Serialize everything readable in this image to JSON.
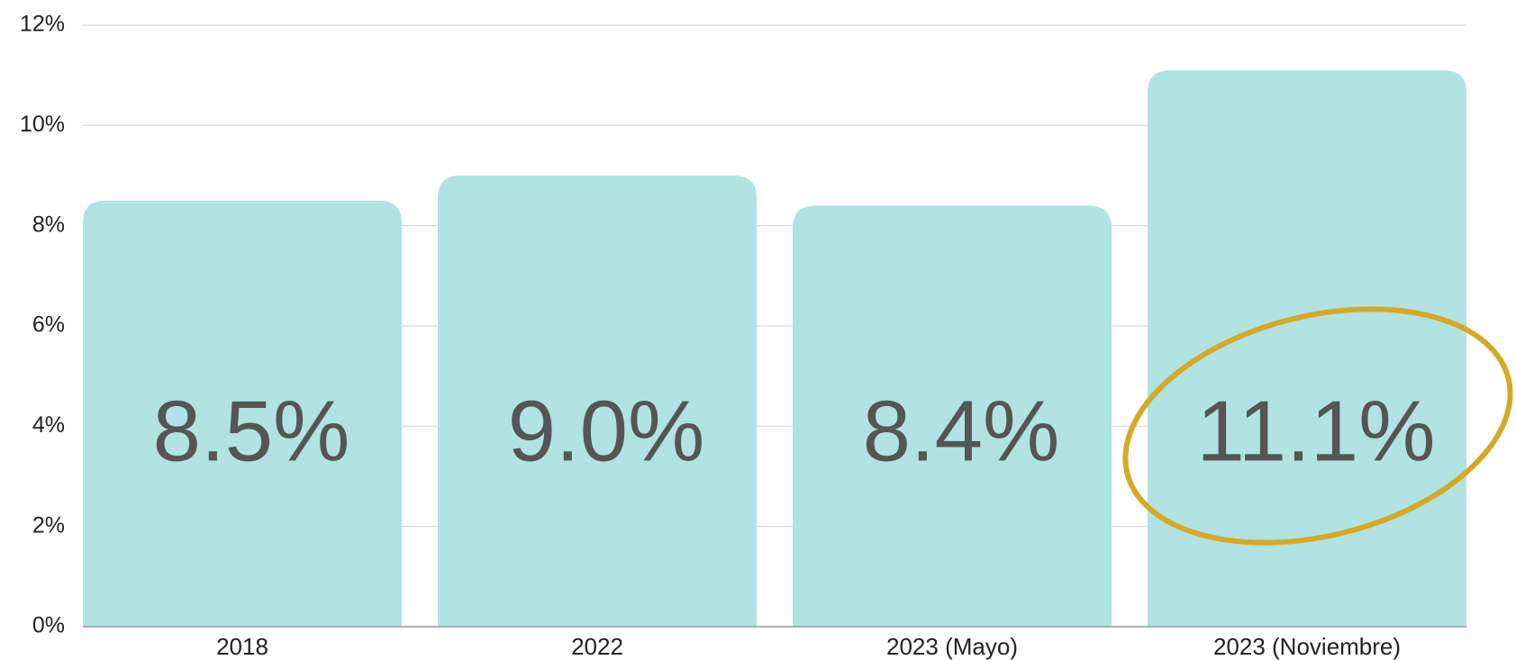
{
  "chart_data": {
    "type": "bar",
    "categories": [
      "2018",
      "2022",
      "2023 (Mayo)",
      "2023 (Noviembre)"
    ],
    "values": [
      8.5,
      9.0,
      8.4,
      11.1
    ],
    "value_labels": [
      "8.5%",
      "9.0%",
      "8.4%",
      "11.1%"
    ],
    "color": "#b1e3e3",
    "ylim": [
      0,
      12
    ],
    "yticks": [
      {
        "value": 0,
        "label": "0%"
      },
      {
        "value": 2,
        "label": "2%"
      },
      {
        "value": 4,
        "label": "4%"
      },
      {
        "value": 6,
        "label": "6%"
      },
      {
        "value": 8,
        "label": "8%"
      },
      {
        "value": 10,
        "label": "10%"
      },
      {
        "value": 12,
        "label": "12%"
      }
    ],
    "grid": true
  }
}
